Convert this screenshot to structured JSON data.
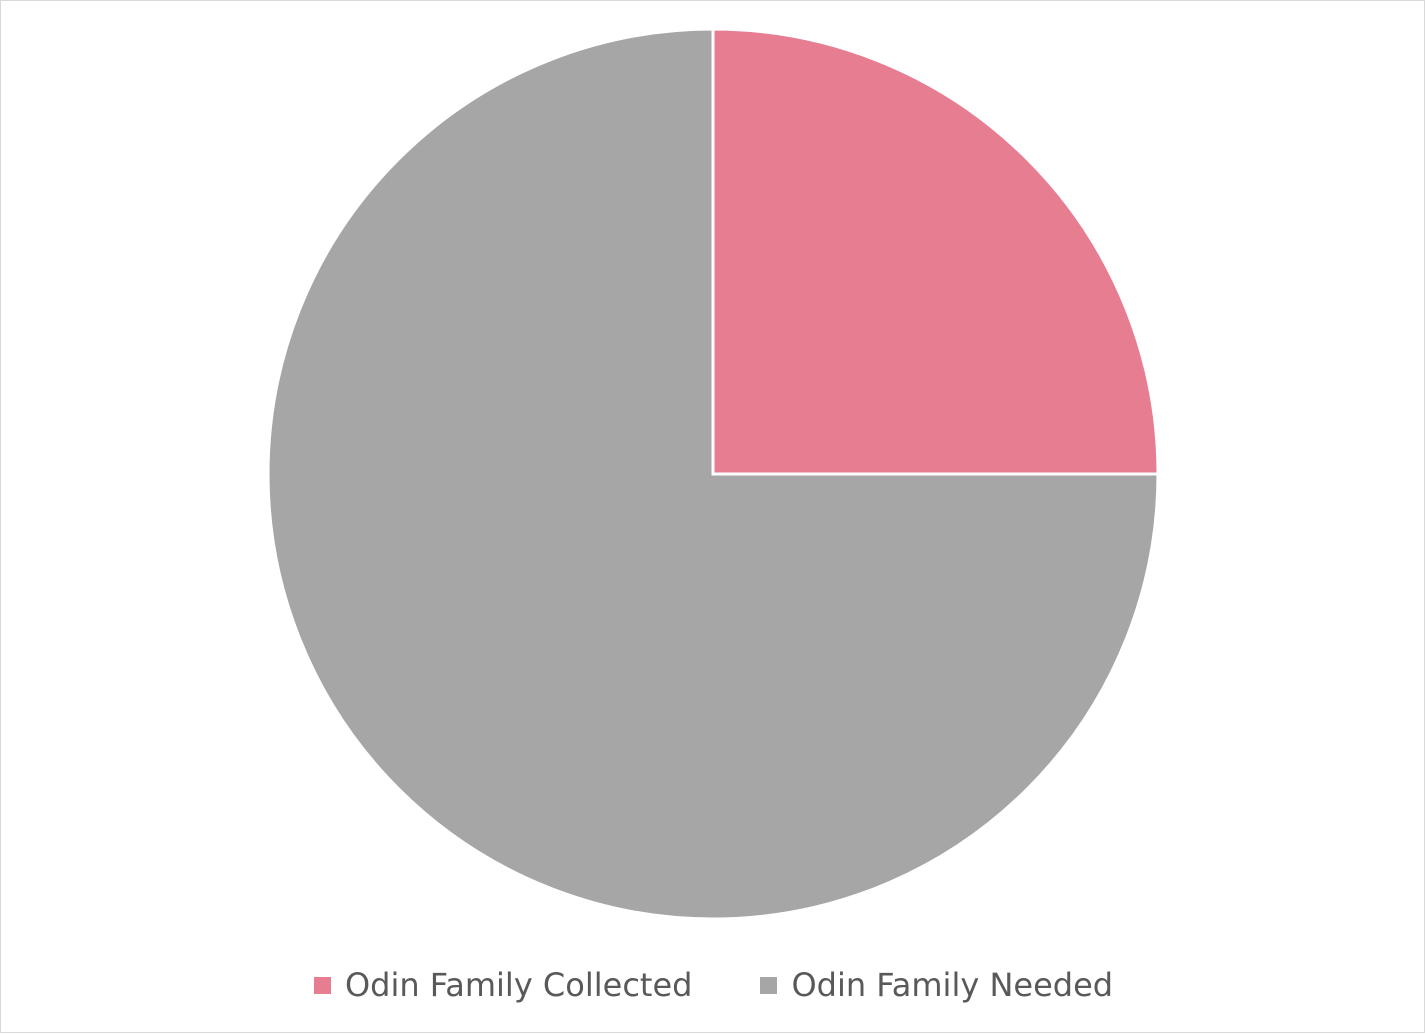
{
  "chart_data": {
    "type": "pie",
    "title": "",
    "categories": [
      "Odin Family Collected",
      "Odin Family Needed"
    ],
    "values": [
      25,
      75
    ],
    "colors": [
      "#e77d91",
      "#a6a6a6"
    ],
    "start_angle_deg": 0,
    "direction": "clockwise",
    "legend": {
      "position": "bottom",
      "items": [
        {
          "label": "Odin Family Collected",
          "color": "#e77d91"
        },
        {
          "label": "Odin Family Needed",
          "color": "#a6a6a6"
        }
      ]
    }
  }
}
